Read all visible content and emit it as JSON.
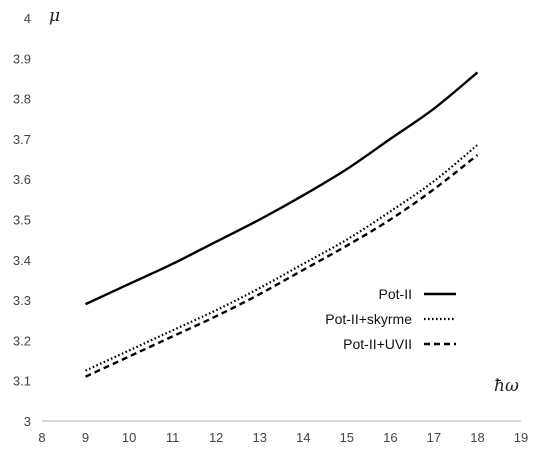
{
  "chart_data": {
    "type": "line",
    "xlabel": "ħω",
    "ylabel": "μ",
    "xlim": [
      8,
      19
    ],
    "ylim": [
      3,
      4
    ],
    "xticks": [
      8,
      9,
      10,
      11,
      12,
      13,
      14,
      15,
      16,
      17,
      18,
      19
    ],
    "yticks": [
      3,
      3.1,
      3.2,
      3.3,
      3.4,
      3.5,
      3.6,
      3.7,
      3.8,
      3.9,
      4
    ],
    "ytick_labels": [
      "3",
      "3.1",
      "3.2",
      "3.3",
      "3.4",
      "3.5",
      "3.6",
      "3.7",
      "3.8",
      "3.9",
      "4"
    ],
    "grid": false,
    "legend_position": "lower-right",
    "x": [
      9,
      10,
      11,
      12,
      13,
      14,
      15,
      16,
      17,
      18
    ],
    "series": [
      {
        "name": "Pot-II",
        "style": "solid",
        "values": [
          3.29,
          3.34,
          3.39,
          3.445,
          3.5,
          3.56,
          3.625,
          3.7,
          3.775,
          3.865
        ]
      },
      {
        "name": "Pot-II+skyrme",
        "style": "dotted",
        "values": [
          3.125,
          3.175,
          3.225,
          3.275,
          3.33,
          3.39,
          3.45,
          3.52,
          3.595,
          3.685
        ]
      },
      {
        "name": "Pot-II+UVII",
        "style": "dashed",
        "values": [
          3.11,
          3.16,
          3.21,
          3.26,
          3.315,
          3.375,
          3.435,
          3.5,
          3.575,
          3.66
        ]
      }
    ],
    "colors": {
      "lines": "#000000",
      "axis": "#bfbfbf",
      "ticks": "#444444"
    }
  }
}
